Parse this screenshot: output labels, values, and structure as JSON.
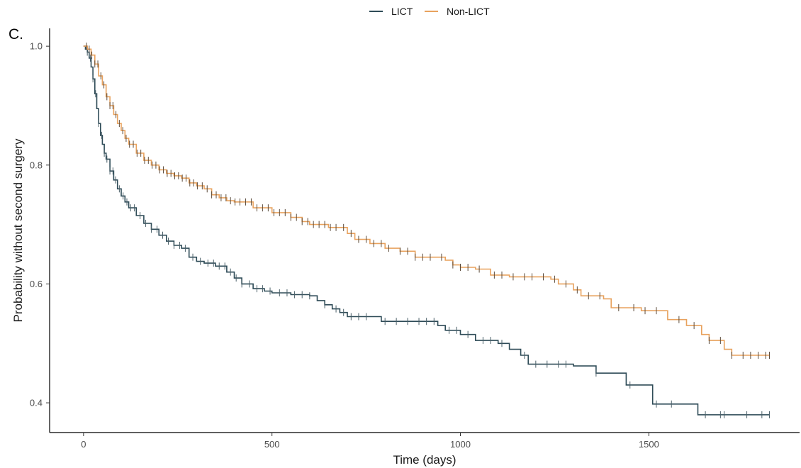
{
  "panel_label": "C.",
  "chart_data": {
    "type": "line",
    "subtype": "kaplan-meier step",
    "title": "",
    "xlabel": "Time (days)",
    "ylabel": "Probability without second surgery",
    "xlim": [
      -90,
      1900
    ],
    "ylim": [
      0.35,
      1.03
    ],
    "xticks": [
      0,
      500,
      1000,
      1500
    ],
    "yticks": [
      0.4,
      0.6,
      0.8,
      1.0
    ],
    "xtick_labels": [
      "0",
      "500",
      "1000",
      "1500"
    ],
    "ytick_labels": [
      "0.4",
      "0.6",
      "0.8",
      "1.0"
    ],
    "grid": false,
    "legend_position": "top-center",
    "series": [
      {
        "name": "LICT",
        "color": "#2e4b57",
        "points": [
          [
            0,
            1.0
          ],
          [
            5,
            0.995
          ],
          [
            10,
            0.99
          ],
          [
            15,
            0.98
          ],
          [
            20,
            0.965
          ],
          [
            25,
            0.945
          ],
          [
            30,
            0.92
          ],
          [
            35,
            0.895
          ],
          [
            40,
            0.87
          ],
          [
            45,
            0.85
          ],
          [
            50,
            0.835
          ],
          [
            55,
            0.82
          ],
          [
            60,
            0.81
          ],
          [
            70,
            0.79
          ],
          [
            80,
            0.775
          ],
          [
            90,
            0.76
          ],
          [
            100,
            0.748
          ],
          [
            110,
            0.738
          ],
          [
            120,
            0.728
          ],
          [
            140,
            0.715
          ],
          [
            160,
            0.702
          ],
          [
            180,
            0.692
          ],
          [
            200,
            0.682
          ],
          [
            220,
            0.672
          ],
          [
            240,
            0.665
          ],
          [
            260,
            0.66
          ],
          [
            280,
            0.645
          ],
          [
            300,
            0.638
          ],
          [
            320,
            0.635
          ],
          [
            350,
            0.63
          ],
          [
            380,
            0.62
          ],
          [
            400,
            0.61
          ],
          [
            420,
            0.6
          ],
          [
            450,
            0.592
          ],
          [
            480,
            0.588
          ],
          [
            500,
            0.585
          ],
          [
            550,
            0.582
          ],
          [
            600,
            0.58
          ],
          [
            620,
            0.572
          ],
          [
            640,
            0.565
          ],
          [
            660,
            0.558
          ],
          [
            680,
            0.552
          ],
          [
            700,
            0.545
          ],
          [
            790,
            0.537
          ],
          [
            940,
            0.53
          ],
          [
            960,
            0.522
          ],
          [
            1000,
            0.515
          ],
          [
            1040,
            0.505
          ],
          [
            1100,
            0.5
          ],
          [
            1130,
            0.49
          ],
          [
            1160,
            0.48
          ],
          [
            1180,
            0.465
          ],
          [
            1300,
            0.462
          ],
          [
            1360,
            0.45
          ],
          [
            1440,
            0.43
          ],
          [
            1510,
            0.398
          ],
          [
            1570,
            0.398
          ],
          [
            1630,
            0.38
          ],
          [
            1820,
            0.38
          ]
        ],
        "censors": [
          10,
          18,
          25,
          32,
          40,
          48,
          55,
          62,
          70,
          78,
          85,
          95,
          105,
          115,
          125,
          135,
          150,
          165,
          180,
          195,
          210,
          225,
          240,
          255,
          270,
          290,
          310,
          330,
          345,
          360,
          375,
          390,
          405,
          420,
          440,
          460,
          475,
          495,
          520,
          540,
          560,
          580,
          600,
          640,
          670,
          690,
          710,
          730,
          750,
          800,
          830,
          860,
          890,
          910,
          930,
          970,
          990,
          1020,
          1060,
          1080,
          1110,
          1170,
          1200,
          1230,
          1260,
          1280,
          1360,
          1450,
          1520,
          1560,
          1650,
          1690,
          1700,
          1760,
          1800,
          1820
        ]
      },
      {
        "name": "Non-LICT",
        "color": "#e8a25e",
        "points": [
          [
            0,
            1.0
          ],
          [
            10,
            0.995
          ],
          [
            20,
            0.985
          ],
          [
            30,
            0.97
          ],
          [
            40,
            0.95
          ],
          [
            50,
            0.935
          ],
          [
            60,
            0.915
          ],
          [
            70,
            0.9
          ],
          [
            80,
            0.885
          ],
          [
            90,
            0.87
          ],
          [
            100,
            0.858
          ],
          [
            110,
            0.845
          ],
          [
            120,
            0.835
          ],
          [
            140,
            0.82
          ],
          [
            160,
            0.808
          ],
          [
            180,
            0.8
          ],
          [
            200,
            0.792
          ],
          [
            220,
            0.786
          ],
          [
            240,
            0.782
          ],
          [
            260,
            0.778
          ],
          [
            280,
            0.77
          ],
          [
            300,
            0.765
          ],
          [
            320,
            0.76
          ],
          [
            340,
            0.75
          ],
          [
            360,
            0.745
          ],
          [
            380,
            0.74
          ],
          [
            400,
            0.738
          ],
          [
            450,
            0.728
          ],
          [
            500,
            0.72
          ],
          [
            550,
            0.712
          ],
          [
            580,
            0.705
          ],
          [
            600,
            0.7
          ],
          [
            650,
            0.695
          ],
          [
            700,
            0.685
          ],
          [
            720,
            0.675
          ],
          [
            760,
            0.668
          ],
          [
            800,
            0.66
          ],
          [
            840,
            0.655
          ],
          [
            880,
            0.645
          ],
          [
            960,
            0.64
          ],
          [
            980,
            0.632
          ],
          [
            1000,
            0.628
          ],
          [
            1040,
            0.625
          ],
          [
            1080,
            0.615
          ],
          [
            1130,
            0.612
          ],
          [
            1240,
            0.608
          ],
          [
            1260,
            0.6
          ],
          [
            1300,
            0.59
          ],
          [
            1320,
            0.58
          ],
          [
            1380,
            0.575
          ],
          [
            1400,
            0.56
          ],
          [
            1480,
            0.555
          ],
          [
            1550,
            0.54
          ],
          [
            1600,
            0.53
          ],
          [
            1640,
            0.515
          ],
          [
            1660,
            0.505
          ],
          [
            1700,
            0.49
          ],
          [
            1720,
            0.48
          ],
          [
            1820,
            0.48
          ]
        ],
        "censors": [
          8,
          15,
          22,
          30,
          38,
          46,
          54,
          62,
          70,
          78,
          86,
          95,
          104,
          113,
          122,
          132,
          142,
          152,
          162,
          172,
          182,
          192,
          202,
          212,
          222,
          232,
          242,
          252,
          262,
          272,
          282,
          292,
          302,
          315,
          328,
          340,
          352,
          365,
          378,
          390,
          402,
          415,
          430,
          445,
          460,
          475,
          490,
          505,
          520,
          535,
          550,
          565,
          580,
          595,
          610,
          625,
          640,
          655,
          670,
          690,
          710,
          730,
          750,
          770,
          790,
          810,
          840,
          860,
          880,
          900,
          920,
          950,
          980,
          1000,
          1020,
          1050,
          1090,
          1110,
          1140,
          1170,
          1190,
          1220,
          1250,
          1280,
          1310,
          1340,
          1370,
          1420,
          1460,
          1490,
          1520,
          1580,
          1620,
          1660,
          1690,
          1720,
          1750,
          1770,
          1790,
          1810,
          1820
        ]
      }
    ]
  }
}
